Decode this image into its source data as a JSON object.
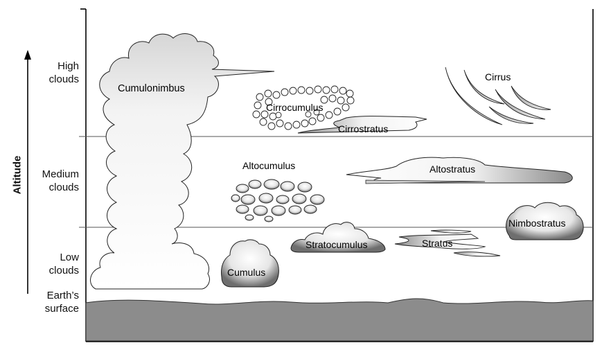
{
  "axis": {
    "title": "Altitude"
  },
  "tiers": [
    {
      "id": "high",
      "label": "High\nclouds"
    },
    {
      "id": "medium",
      "label": "Medium\nclouds"
    },
    {
      "id": "low",
      "label": "Low\nclouds"
    },
    {
      "id": "surface",
      "label": "Earth’s\nsurface"
    }
  ],
  "clouds": {
    "cumulonimbus": "Cumulonimbus",
    "cirrocumulus": "Cirrocumulus",
    "cirrostratus": "Cirrostratus",
    "cirrus": "Cirrus",
    "altocumulus": "Altocumulus",
    "altostratus": "Altostratus",
    "nimbostratus": "Nimbostratus",
    "stratocumulus": "Stratocumulus",
    "stratus": "Stratus",
    "cumulus": "Cumulus"
  },
  "colors": {
    "ground": "#8c8c8c",
    "cloud_light": "#ffffff",
    "cloud_dark": "#7a7a7a",
    "line": "#555555"
  }
}
